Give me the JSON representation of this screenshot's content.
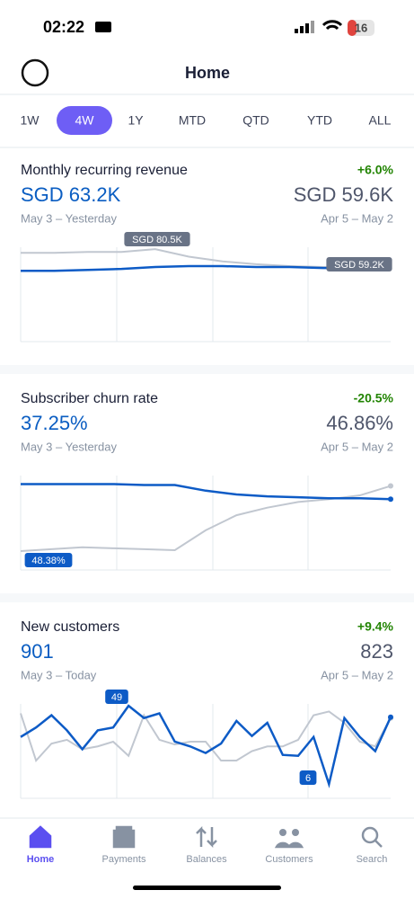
{
  "status_bar": {
    "time": "02:22",
    "battery": "16"
  },
  "header": {
    "title": "Home"
  },
  "range_tabs": {
    "options": [
      "1W",
      "4W",
      "1Y",
      "MTD",
      "QTD",
      "YTD",
      "ALL"
    ],
    "selected": "4W"
  },
  "cards": [
    {
      "title": "Monthly recurring revenue",
      "change": "+6.0%",
      "current_value": "SGD 63.2K",
      "previous_value": "SGD 59.6K",
      "current_period": "May 3 – Yesterday",
      "previous_period": "Apr 5 – May 2",
      "chart": {
        "type": "line",
        "ylim": [
          0,
          100
        ],
        "series": [
          {
            "color": "#c1c7d0",
            "values": [
              94,
              94,
              95,
              95,
              98,
              90,
              85,
              82,
              80,
              79,
              78,
              76
            ]
          },
          {
            "color": "#0d5bc6",
            "values": [
              75,
              75,
              76,
              77,
              79,
              80,
              80,
              79,
              79,
              78,
              78,
              78
            ]
          }
        ],
        "annotations": [
          {
            "text": "SGD 80.5K",
            "color": "#697386"
          },
          {
            "text": "SGD 59.2K",
            "color": "#697386"
          }
        ]
      }
    },
    {
      "title": "Subscriber churn rate",
      "change": "-20.5%",
      "current_value": "37.25%",
      "previous_value": "46.86%",
      "current_period": "May 3 – Yesterday",
      "previous_period": "Apr 5 – May 2",
      "chart": {
        "type": "line",
        "ylim": [
          0,
          100
        ],
        "series": [
          {
            "color": "#c1c7d0",
            "values": [
              20,
              22,
              24,
              23,
              22,
              21,
              42,
              58,
              66,
              72,
              75,
              79,
              89
            ]
          },
          {
            "color": "#0d5bc6",
            "values": [
              91,
              91,
              91,
              91,
              90,
              90,
              84,
              80,
              78,
              77,
              76,
              76,
              75
            ]
          }
        ],
        "annotations": [
          {
            "text": "48.38%",
            "color": "#0d5bc6"
          }
        ]
      }
    },
    {
      "title": "New customers",
      "change": "+9.4%",
      "current_value": "901",
      "previous_value": "823",
      "current_period": "May 3 – Today",
      "previous_period": "Apr 5 – May 2",
      "chart": {
        "type": "line",
        "ylim": [
          0,
          100
        ],
        "series": [
          {
            "color": "#c1c7d0",
            "values": [
              90,
              40,
              58,
              62,
              52,
              55,
              60,
              45,
              88,
              62,
              57,
              60,
              60,
              40,
              40,
              50,
              55,
              55,
              62,
              88,
              92,
              80,
              60,
              55,
              85
            ]
          },
          {
            "color": "#0d5bc6",
            "values": [
              65,
              75,
              88,
              72,
              52,
              72,
              75,
              98,
              85,
              90,
              60,
              55,
              48,
              58,
              82,
              66,
              80,
              46,
              45,
              65,
              15,
              85,
              65,
              50,
              86
            ]
          }
        ],
        "annotations": [
          {
            "text": "49",
            "color": "#0d5bc6"
          },
          {
            "text": "6",
            "color": "#0d5bc6"
          }
        ]
      }
    }
  ],
  "nav": {
    "items": [
      "Home",
      "Payments",
      "Balances",
      "Customers",
      "Search"
    ],
    "selected": "Home"
  }
}
